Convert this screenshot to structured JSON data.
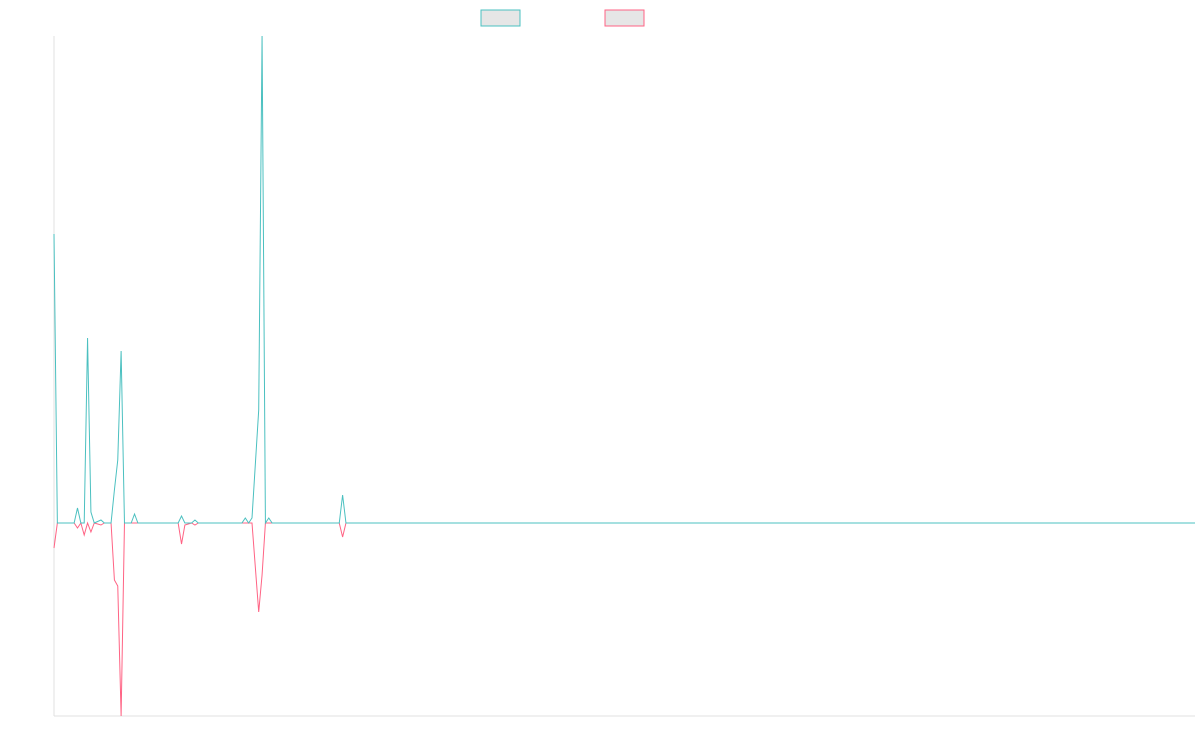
{
  "chart_data": {
    "type": "line",
    "x": [
      0,
      1,
      6,
      7,
      8,
      9,
      10,
      11,
      12,
      14,
      15,
      17,
      18,
      19,
      20,
      21,
      23,
      24,
      25,
      37,
      38,
      39,
      41,
      42,
      43,
      56,
      57,
      58,
      59,
      61,
      62,
      63,
      64,
      65,
      85,
      86,
      87,
      340
    ],
    "series": [
      {
        "color": "#ff6384",
        "values": [
          -25,
          0,
          0,
          -5,
          0,
          -12,
          0,
          -9,
          0,
          -2,
          0,
          0,
          -57,
          -63,
          -193,
          0,
          0,
          0,
          0,
          0,
          -21,
          -2,
          0,
          -2,
          0,
          0,
          0,
          0,
          0,
          -89,
          -52,
          0,
          0,
          0,
          0,
          -14,
          0,
          0
        ]
      },
      {
        "color": "#4bc0c0",
        "values": [
          289,
          0,
          0,
          15,
          0,
          0,
          185,
          11,
          0,
          3,
          0,
          0,
          33,
          63,
          172,
          0,
          0,
          9,
          0,
          0,
          7,
          0,
          0,
          3,
          0,
          0,
          5,
          0,
          5,
          113,
          487,
          0,
          5,
          0,
          0,
          28,
          0,
          0
        ]
      }
    ],
    "legend_order": [
      1,
      0
    ],
    "xlim": [
      0,
      340
    ],
    "ylim": [
      -193,
      487
    ]
  }
}
